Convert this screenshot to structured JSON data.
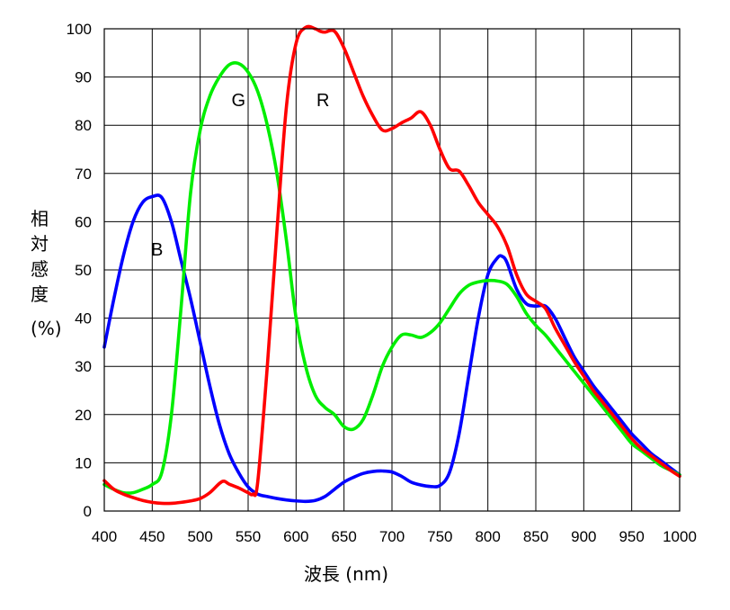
{
  "chart_data": {
    "type": "line",
    "title": "",
    "xlabel": "波長 (nm)",
    "ylabel": "相対感度",
    "ylabel_unit": "(%)",
    "xlim": [
      400,
      1000
    ],
    "ylim": [
      0,
      100
    ],
    "x_ticks": [
      400,
      450,
      500,
      550,
      600,
      650,
      700,
      750,
      800,
      850,
      900,
      950,
      1000
    ],
    "y_ticks": [
      0,
      10,
      20,
      30,
      40,
      50,
      60,
      70,
      80,
      90,
      100
    ],
    "grid": true,
    "series": [
      {
        "name": "B",
        "color": "#0000ff",
        "label_at": [
          455,
          53
        ],
        "points": [
          [
            400,
            34
          ],
          [
            410,
            44
          ],
          [
            420,
            53
          ],
          [
            430,
            60
          ],
          [
            440,
            64
          ],
          [
            450,
            65.2
          ],
          [
            460,
            65
          ],
          [
            470,
            60
          ],
          [
            480,
            52
          ],
          [
            490,
            44
          ],
          [
            500,
            35
          ],
          [
            510,
            26
          ],
          [
            520,
            18
          ],
          [
            530,
            12
          ],
          [
            540,
            8
          ],
          [
            550,
            5
          ],
          [
            560,
            3.5
          ],
          [
            570,
            3
          ],
          [
            580,
            2.6
          ],
          [
            590,
            2.3
          ],
          [
            600,
            2.1
          ],
          [
            610,
            2
          ],
          [
            620,
            2.2
          ],
          [
            630,
            3
          ],
          [
            640,
            4.5
          ],
          [
            650,
            6
          ],
          [
            660,
            7
          ],
          [
            670,
            7.8
          ],
          [
            680,
            8.2
          ],
          [
            690,
            8.3
          ],
          [
            700,
            8.1
          ],
          [
            710,
            7.2
          ],
          [
            720,
            6
          ],
          [
            730,
            5.4
          ],
          [
            740,
            5.1
          ],
          [
            750,
            5.3
          ],
          [
            760,
            8
          ],
          [
            770,
            16
          ],
          [
            780,
            28
          ],
          [
            790,
            40
          ],
          [
            800,
            49
          ],
          [
            810,
            52.5
          ],
          [
            815,
            52.8
          ],
          [
            820,
            51.5
          ],
          [
            830,
            46
          ],
          [
            840,
            43
          ],
          [
            850,
            42.5
          ],
          [
            860,
            42.5
          ],
          [
            870,
            40
          ],
          [
            880,
            36
          ],
          [
            890,
            32
          ],
          [
            900,
            29
          ],
          [
            910,
            26
          ],
          [
            920,
            23.5
          ],
          [
            930,
            21
          ],
          [
            940,
            18.5
          ],
          [
            950,
            16
          ],
          [
            960,
            14
          ],
          [
            970,
            12
          ],
          [
            980,
            10.5
          ],
          [
            990,
            9
          ],
          [
            1000,
            7.5
          ]
        ]
      },
      {
        "name": "G",
        "color": "#00ee00",
        "label_at": [
          540,
          84
        ],
        "points": [
          [
            400,
            5.5
          ],
          [
            410,
            4.5
          ],
          [
            420,
            3.8
          ],
          [
            430,
            3.8
          ],
          [
            440,
            4.5
          ],
          [
            450,
            5.5
          ],
          [
            460,
            8
          ],
          [
            470,
            20
          ],
          [
            480,
            42
          ],
          [
            490,
            66
          ],
          [
            500,
            79
          ],
          [
            510,
            86
          ],
          [
            520,
            90
          ],
          [
            530,
            92.5
          ],
          [
            540,
            92.8
          ],
          [
            550,
            91
          ],
          [
            560,
            87
          ],
          [
            570,
            80
          ],
          [
            580,
            70
          ],
          [
            590,
            56
          ],
          [
            600,
            40
          ],
          [
            610,
            30
          ],
          [
            620,
            24
          ],
          [
            630,
            21.5
          ],
          [
            640,
            20
          ],
          [
            650,
            17.5
          ],
          [
            660,
            17
          ],
          [
            670,
            19
          ],
          [
            680,
            24
          ],
          [
            690,
            30
          ],
          [
            700,
            34
          ],
          [
            710,
            36.5
          ],
          [
            720,
            36.5
          ],
          [
            730,
            36
          ],
          [
            740,
            37
          ],
          [
            750,
            39
          ],
          [
            760,
            42
          ],
          [
            770,
            45
          ],
          [
            780,
            46.8
          ],
          [
            790,
            47.5
          ],
          [
            800,
            47.8
          ],
          [
            810,
            47.7
          ],
          [
            820,
            47
          ],
          [
            830,
            44.5
          ],
          [
            840,
            41
          ],
          [
            850,
            38.5
          ],
          [
            860,
            36.5
          ],
          [
            870,
            34
          ],
          [
            880,
            31.5
          ],
          [
            890,
            29
          ],
          [
            900,
            26.5
          ],
          [
            910,
            24
          ],
          [
            920,
            21.5
          ],
          [
            930,
            19
          ],
          [
            940,
            16.5
          ],
          [
            950,
            14
          ],
          [
            960,
            12.5
          ],
          [
            970,
            11
          ],
          [
            980,
            9.5
          ],
          [
            990,
            8.5
          ],
          [
            1000,
            7.5
          ]
        ]
      },
      {
        "name": "R",
        "color": "#ff0000",
        "label_at": [
          628,
          84
        ],
        "points": [
          [
            400,
            6.3
          ],
          [
            410,
            4.5
          ],
          [
            420,
            3.5
          ],
          [
            430,
            2.8
          ],
          [
            440,
            2.2
          ],
          [
            450,
            1.8
          ],
          [
            460,
            1.6
          ],
          [
            470,
            1.6
          ],
          [
            480,
            1.8
          ],
          [
            490,
            2.1
          ],
          [
            500,
            2.6
          ],
          [
            510,
            3.8
          ],
          [
            520,
            5.7
          ],
          [
            525,
            6.2
          ],
          [
            530,
            5.6
          ],
          [
            540,
            4.8
          ],
          [
            550,
            3.8
          ],
          [
            555,
            3.5
          ],
          [
            560,
            6
          ],
          [
            570,
            30
          ],
          [
            580,
            58
          ],
          [
            590,
            84
          ],
          [
            600,
            97
          ],
          [
            610,
            100.3
          ],
          [
            620,
            100
          ],
          [
            625,
            99.5
          ],
          [
            630,
            99.3
          ],
          [
            640,
            99.5
          ],
          [
            650,
            96
          ],
          [
            660,
            91
          ],
          [
            670,
            86
          ],
          [
            680,
            82
          ],
          [
            690,
            79
          ],
          [
            700,
            79.3
          ],
          [
            710,
            80.5
          ],
          [
            720,
            81.5
          ],
          [
            730,
            82.8
          ],
          [
            740,
            80
          ],
          [
            750,
            75
          ],
          [
            760,
            71
          ],
          [
            770,
            70.5
          ],
          [
            780,
            67.5
          ],
          [
            790,
            64
          ],
          [
            800,
            61.5
          ],
          [
            810,
            59
          ],
          [
            820,
            55
          ],
          [
            830,
            49
          ],
          [
            840,
            45
          ],
          [
            850,
            43.5
          ],
          [
            860,
            42
          ],
          [
            870,
            38
          ],
          [
            880,
            34.5
          ],
          [
            890,
            31
          ],
          [
            900,
            28
          ],
          [
            910,
            25
          ],
          [
            920,
            22.5
          ],
          [
            930,
            20
          ],
          [
            940,
            17.5
          ],
          [
            950,
            15
          ],
          [
            960,
            13
          ],
          [
            970,
            11.5
          ],
          [
            980,
            10
          ],
          [
            990,
            8.5
          ],
          [
            1000,
            7.2
          ]
        ]
      }
    ]
  }
}
